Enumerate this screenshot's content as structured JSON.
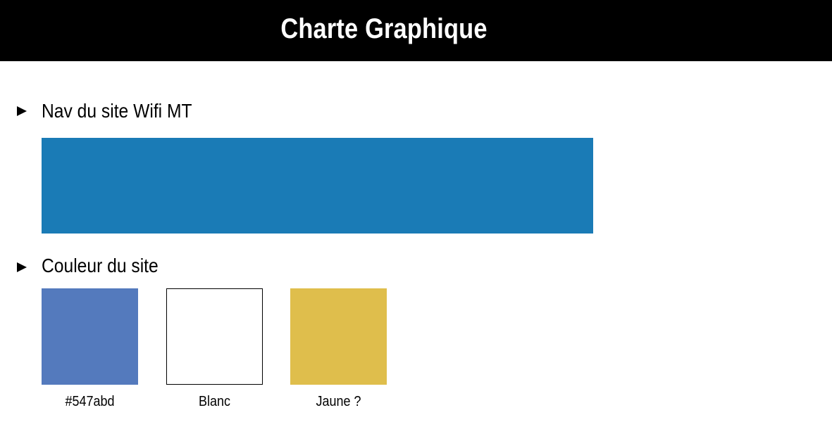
{
  "header": {
    "title": "Charte Graphique"
  },
  "sections": [
    {
      "heading": "Nav du site Wifi MT",
      "bullet_icon": "triangle-right-icon",
      "nav_color": "#1a7bb6"
    },
    {
      "heading": "Couleur du site",
      "bullet_icon": "triangle-right-icon",
      "swatches": [
        {
          "label": "#547abd",
          "color": "#547abd"
        },
        {
          "label": "Blanc",
          "color": "#ffffff"
        },
        {
          "label": "Jaune ?",
          "color": "#dfbe4c"
        }
      ]
    }
  ]
}
